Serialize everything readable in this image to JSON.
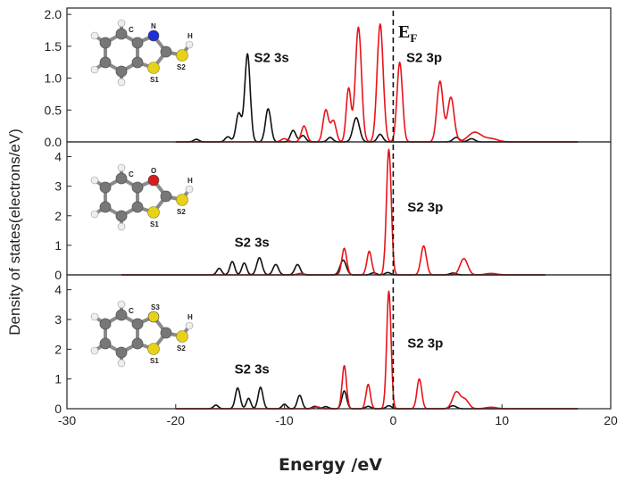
{
  "chart_data": {
    "type": "line",
    "xlabel": "Energy /eV",
    "ylabel": "Density of states(electrons/eV)",
    "xlim": [
      -30,
      20
    ],
    "x_ticks": [
      "-30",
      "-20",
      "-10",
      "0",
      "10",
      "20"
    ],
    "fermi_level_x": 0,
    "fermi_label": "E",
    "fermi_label_sub": "F",
    "colors": {
      "s_series": "#111111",
      "p_series": "#e8141a",
      "fermi": "#111111",
      "frame": "#222222"
    },
    "panels": [
      {
        "ylim": [
          0,
          2.1
        ],
        "y_ticks": [
          "0.0",
          "0.5",
          "1.0",
          "1.5",
          "2.0"
        ],
        "x_start": -20,
        "x_end": 17,
        "annotations": [
          {
            "text": "S2 3s",
            "x": -12.8,
            "y": 1.25
          },
          {
            "text": "S2 3p",
            "x": 1.2,
            "y": 1.25
          }
        ],
        "molecule_labels": [
          "N",
          "C",
          "H",
          "S2",
          "S1"
        ],
        "series": [
          {
            "label": "S2 3s",
            "peaks": [
              [
                -18.1,
                0.04,
                0.25
              ],
              [
                -15.2,
                0.08,
                0.25
              ],
              [
                -14.2,
                0.45,
                0.25
              ],
              [
                -13.4,
                1.38,
                0.25
              ],
              [
                -11.5,
                0.52,
                0.25
              ],
              [
                -9.2,
                0.18,
                0.25
              ],
              [
                -8.3,
                0.1,
                0.25
              ],
              [
                -5.8,
                0.07,
                0.25
              ],
              [
                -3.4,
                0.38,
                0.3
              ],
              [
                -1.2,
                0.12,
                0.25
              ],
              [
                5.8,
                0.07,
                0.3
              ],
              [
                7.2,
                0.05,
                0.3
              ]
            ]
          },
          {
            "label": "S2 3p",
            "peaks": [
              [
                -10.0,
                0.05,
                0.3
              ],
              [
                -8.2,
                0.25,
                0.25
              ],
              [
                -6.2,
                0.5,
                0.25
              ],
              [
                -5.5,
                0.33,
                0.25
              ],
              [
                -4.1,
                0.84,
                0.22
              ],
              [
                -3.2,
                1.8,
                0.28
              ],
              [
                -1.2,
                1.85,
                0.28
              ],
              [
                0.6,
                1.25,
                0.25
              ],
              [
                4.3,
                0.95,
                0.28
              ],
              [
                5.3,
                0.7,
                0.3
              ],
              [
                7.5,
                0.15,
                0.6
              ],
              [
                9.0,
                0.05,
                0.6
              ]
            ]
          }
        ]
      },
      {
        "ylim": [
          0,
          4.5
        ],
        "y_ticks": [
          "0",
          "1",
          "2",
          "3",
          "4"
        ],
        "x_start": -25,
        "x_end": 14,
        "annotations": [
          {
            "text": "S2 3s",
            "x": -14.6,
            "y": 0.95
          },
          {
            "text": "S2 3p",
            "x": 1.3,
            "y": 2.15
          }
        ],
        "molecule_labels": [
          "O",
          "C",
          "H",
          "S2",
          "S1"
        ],
        "series": [
          {
            "label": "S2 3s",
            "peaks": [
              [
                -16.0,
                0.22,
                0.22
              ],
              [
                -14.8,
                0.45,
                0.22
              ],
              [
                -13.7,
                0.4,
                0.22
              ],
              [
                -12.3,
                0.58,
                0.25
              ],
              [
                -10.8,
                0.35,
                0.25
              ],
              [
                -8.8,
                0.35,
                0.25
              ],
              [
                -4.6,
                0.5,
                0.28
              ],
              [
                -1.8,
                0.07,
                0.25
              ],
              [
                -0.5,
                0.08,
                0.25
              ],
              [
                5.5,
                0.06,
                0.3
              ]
            ]
          },
          {
            "label": "S2 3p",
            "peaks": [
              [
                -8.5,
                0.05,
                0.3
              ],
              [
                -4.5,
                0.9,
                0.22
              ],
              [
                -2.2,
                0.8,
                0.22
              ],
              [
                -0.4,
                4.25,
                0.22
              ],
              [
                2.8,
                0.98,
                0.25
              ],
              [
                6.5,
                0.55,
                0.35
              ],
              [
                9.0,
                0.05,
                0.5
              ]
            ]
          }
        ]
      },
      {
        "ylim": [
          0,
          4.5
        ],
        "y_ticks": [
          "0",
          "1",
          "2",
          "3",
          "4"
        ],
        "x_start": -20,
        "x_end": 17,
        "annotations": [
          {
            "text": "S2 3s",
            "x": -14.6,
            "y": 1.18
          },
          {
            "text": "S2 3p",
            "x": 1.3,
            "y": 2.05
          }
        ],
        "molecule_labels": [
          "S3",
          "C",
          "H",
          "S2",
          "S1"
        ],
        "series": [
          {
            "label": "S2 3s",
            "peaks": [
              [
                -16.3,
                0.12,
                0.22
              ],
              [
                -14.3,
                0.7,
                0.22
              ],
              [
                -13.3,
                0.35,
                0.2
              ],
              [
                -12.2,
                0.72,
                0.22
              ],
              [
                -10.0,
                0.15,
                0.22
              ],
              [
                -8.6,
                0.45,
                0.22
              ],
              [
                -7.2,
                0.08,
                0.25
              ],
              [
                -6.2,
                0.07,
                0.25
              ],
              [
                -4.5,
                0.6,
                0.22
              ],
              [
                -2.3,
                0.08,
                0.25
              ],
              [
                -0.4,
                0.1,
                0.25
              ],
              [
                5.5,
                0.1,
                0.3
              ]
            ]
          },
          {
            "label": "S2 3p",
            "peaks": [
              [
                -7.0,
                0.06,
                0.3
              ],
              [
                -4.5,
                1.45,
                0.2
              ],
              [
                -2.3,
                0.82,
                0.2
              ],
              [
                -0.4,
                3.95,
                0.2
              ],
              [
                2.4,
                1.0,
                0.22
              ],
              [
                5.8,
                0.55,
                0.35
              ],
              [
                6.6,
                0.3,
                0.35
              ],
              [
                9.0,
                0.05,
                0.5
              ]
            ]
          }
        ]
      }
    ]
  }
}
